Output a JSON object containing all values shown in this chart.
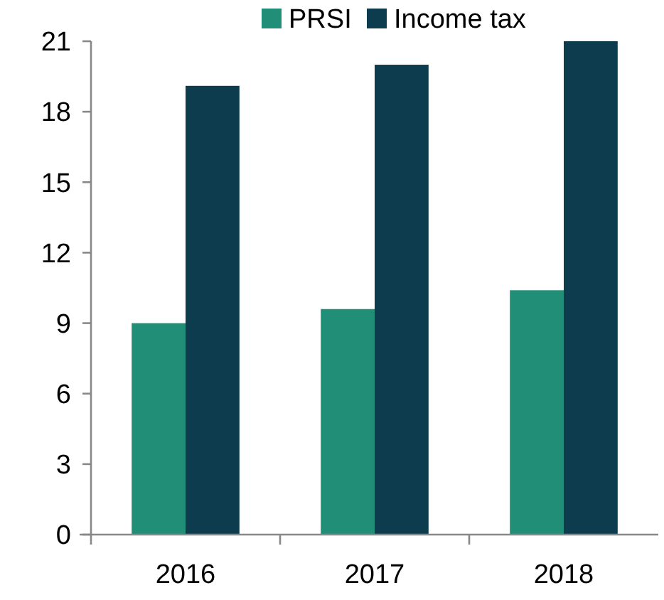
{
  "chart_data": {
    "type": "bar",
    "categories": [
      "2016",
      "2017",
      "2018"
    ],
    "series": [
      {
        "name": "PRSI",
        "color": "#218f78",
        "values": [
          9.0,
          9.6,
          10.4
        ]
      },
      {
        "name": "Income tax",
        "color": "#0c3c4e",
        "values": [
          19.1,
          20.0,
          21.0
        ]
      }
    ],
    "ylim": [
      0,
      21
    ],
    "yticks": [
      0,
      3,
      6,
      9,
      12,
      15,
      18,
      21
    ],
    "grid": false,
    "legend": "top"
  }
}
